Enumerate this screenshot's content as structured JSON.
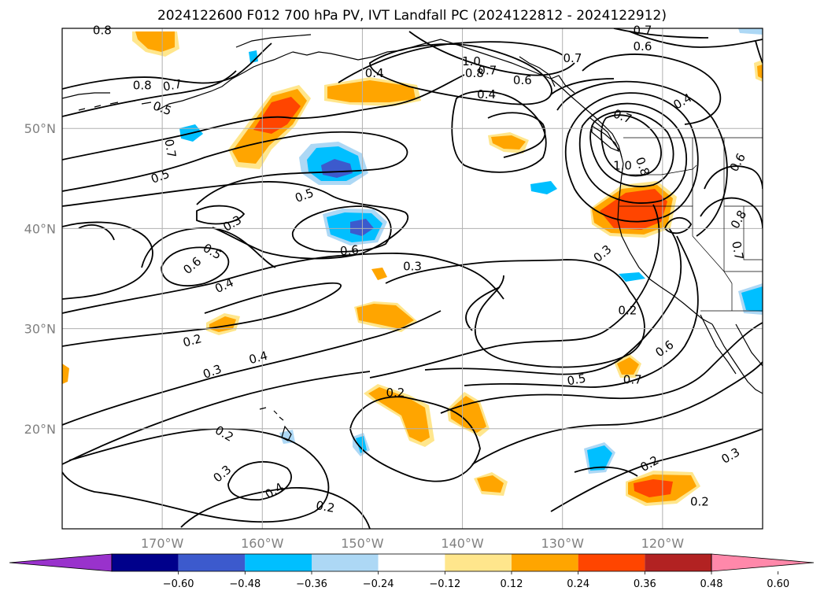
{
  "title": "2024122600 F012 700 hPa PV, IVT Landfall PC (2024122812 - 2024122912)",
  "map": {
    "lon_range": [
      -180,
      -110
    ],
    "lat_range": [
      10,
      60
    ],
    "lon_ticks": [
      {
        "value": -170,
        "label": "170°W"
      },
      {
        "value": -160,
        "label": "160°W"
      },
      {
        "value": -150,
        "label": "150°W"
      },
      {
        "value": -140,
        "label": "140°W"
      },
      {
        "value": -130,
        "label": "130°W"
      },
      {
        "value": -120,
        "label": "120°W"
      }
    ],
    "lat_ticks": [
      {
        "value": 20,
        "label": "20°N"
      },
      {
        "value": 30,
        "label": "30°N"
      },
      {
        "value": 40,
        "label": "40°N"
      },
      {
        "value": 50,
        "label": "50°N"
      }
    ],
    "gridlines": true,
    "coastlines": true
  },
  "contour_labels": [
    {
      "text": "0.8",
      "lon": -176.0,
      "lat": 59.8,
      "rot": 0
    },
    {
      "text": "0.8",
      "lon": -172.0,
      "lat": 54.3,
      "rot": 0
    },
    {
      "text": "0.7",
      "lon": -169.0,
      "lat": 54.3,
      "rot": -10
    },
    {
      "text": "0.5",
      "lon": -170.0,
      "lat": 52.0,
      "rot": 20
    },
    {
      "text": "0.7",
      "lon": -169.2,
      "lat": 48.0,
      "rot": 80
    },
    {
      "text": "0.5",
      "lon": -170.2,
      "lat": 45.2,
      "rot": -20
    },
    {
      "text": "0.3",
      "lon": -163.0,
      "lat": 40.5,
      "rot": -30
    },
    {
      "text": "0.5",
      "lon": -165.0,
      "lat": 37.7,
      "rot": 30
    },
    {
      "text": "0.6",
      "lon": -167.0,
      "lat": 36.3,
      "rot": -40
    },
    {
      "text": "0.4",
      "lon": -163.8,
      "lat": 34.3,
      "rot": -25
    },
    {
      "text": "0.2",
      "lon": -167.0,
      "lat": 28.8,
      "rot": -15
    },
    {
      "text": "0.3",
      "lon": -165.0,
      "lat": 25.7,
      "rot": -20
    },
    {
      "text": "0.4",
      "lon": -160.4,
      "lat": 27.1,
      "rot": -15
    },
    {
      "text": "0.2",
      "lon": -163.8,
      "lat": 19.5,
      "rot": 30
    },
    {
      "text": "0.3",
      "lon": -164.0,
      "lat": 15.5,
      "rot": -40
    },
    {
      "text": "0.4",
      "lon": -158.8,
      "lat": 13.8,
      "rot": -30
    },
    {
      "text": "0.2",
      "lon": -153.7,
      "lat": 12.2,
      "rot": 10
    },
    {
      "text": "0.5",
      "lon": -155.8,
      "lat": 43.3,
      "rot": -20
    },
    {
      "text": "0.6",
      "lon": -151.3,
      "lat": 37.8,
      "rot": -5
    },
    {
      "text": "0.4",
      "lon": -148.8,
      "lat": 55.5,
      "rot": 0
    },
    {
      "text": "0.3",
      "lon": -145.0,
      "lat": 36.2,
      "rot": 0
    },
    {
      "text": "0.2",
      "lon": -146.7,
      "lat": 23.6,
      "rot": 0
    },
    {
      "text": "1.0",
      "lon": -139.1,
      "lat": 56.7,
      "rot": 0
    },
    {
      "text": "0.8",
      "lon": -138.8,
      "lat": 55.5,
      "rot": 0
    },
    {
      "text": "0.7",
      "lon": -137.5,
      "lat": 55.8,
      "rot": 0
    },
    {
      "text": "0.6",
      "lon": -134.0,
      "lat": 54.8,
      "rot": 0
    },
    {
      "text": "0.4",
      "lon": -137.6,
      "lat": 53.4,
      "rot": 0
    },
    {
      "text": "0.7",
      "lon": -129.0,
      "lat": 57.0,
      "rot": 0
    },
    {
      "text": "0.7",
      "lon": -122.0,
      "lat": 59.8,
      "rot": 0
    },
    {
      "text": "0.6",
      "lon": -122.0,
      "lat": 58.2,
      "rot": 0
    },
    {
      "text": "0.4",
      "lon": -118.0,
      "lat": 52.7,
      "rot": -30
    },
    {
      "text": "0.7",
      "lon": -124.0,
      "lat": 51.2,
      "rot": 20
    },
    {
      "text": "1.0",
      "lon": -124.0,
      "lat": 46.3,
      "rot": 0
    },
    {
      "text": "0.8",
      "lon": -122.0,
      "lat": 46.2,
      "rot": 70
    },
    {
      "text": "0.6",
      "lon": -112.5,
      "lat": 46.6,
      "rot": -60
    },
    {
      "text": "0.8",
      "lon": -112.4,
      "lat": 40.9,
      "rot": -60
    },
    {
      "text": "0.7",
      "lon": -112.5,
      "lat": 37.8,
      "rot": 80
    },
    {
      "text": "0.3",
      "lon": -126.0,
      "lat": 37.5,
      "rot": -40
    },
    {
      "text": "0.2",
      "lon": -123.5,
      "lat": 31.8,
      "rot": 0
    },
    {
      "text": "0.6",
      "lon": -119.8,
      "lat": 28.0,
      "rot": -35
    },
    {
      "text": "0.5",
      "lon": -128.6,
      "lat": 24.9,
      "rot": -10
    },
    {
      "text": "0.7",
      "lon": -123.0,
      "lat": 24.9,
      "rot": 0
    },
    {
      "text": "0.2",
      "lon": -121.3,
      "lat": 16.5,
      "rot": -30
    },
    {
      "text": "0.3",
      "lon": -113.2,
      "lat": 17.3,
      "rot": -30
    },
    {
      "text": "0.2",
      "lon": -116.3,
      "lat": 12.7,
      "rot": 0
    }
  ],
  "colorbar": {
    "ticks": [
      "−0.60",
      "−0.48",
      "−0.36",
      "−0.24",
      "−0.12",
      "0.12",
      "0.24",
      "0.36",
      "0.48",
      "0.60"
    ],
    "colors": [
      "#9932cc",
      "#00008b",
      "#3c5acd",
      "#00bfff",
      "#add8f5",
      "#ffffff",
      "#ffe68c",
      "#ffa500",
      "#ff4500",
      "#b22222",
      "#ff88aa"
    ]
  },
  "colors": {
    "orange": "#ffa500",
    "light_orange": "#ffe68c",
    "red_orange": "#ff4500",
    "sky": "#00bfff",
    "light_sky": "#add8f5",
    "royal": "#3c5acd"
  }
}
